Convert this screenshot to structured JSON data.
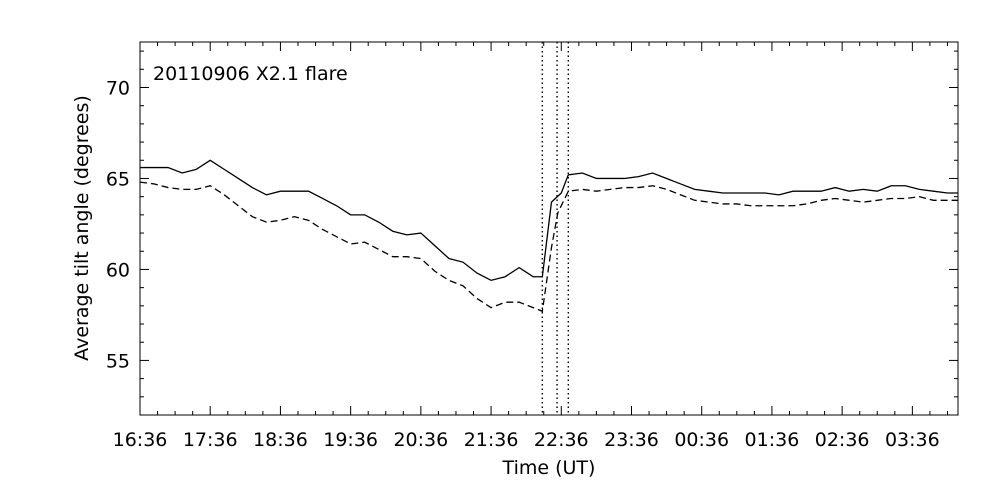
{
  "chart_data": {
    "type": "line",
    "title": "",
    "annotation": "20110906 X2.1 flare",
    "xlabel": "Time (UT)",
    "ylabel": "Average tilt angle (degrees)",
    "xlim": [
      0,
      11.65
    ],
    "ylim": [
      52,
      72.5
    ],
    "x_tick_values": [
      0,
      1,
      2,
      3,
      4,
      5,
      6,
      7,
      8,
      9,
      10,
      11
    ],
    "x_tick_labels": [
      "16:36",
      "17:36",
      "18:36",
      "19:36",
      "20:36",
      "21:36",
      "22:36",
      "23:36",
      "00:36",
      "01:36",
      "02:36",
      "03:36"
    ],
    "y_ticks": [
      55,
      60,
      65,
      70
    ],
    "grid": false,
    "vertical_markers": [
      5.73,
      5.94,
      6.1
    ],
    "series": [
      {
        "style": "solid",
        "points": [
          [
            0,
            65.6
          ],
          [
            0.2,
            65.6
          ],
          [
            0.4,
            65.6
          ],
          [
            0.6,
            65.3
          ],
          [
            0.8,
            65.5
          ],
          [
            1.0,
            66.0
          ],
          [
            1.2,
            65.5
          ],
          [
            1.4,
            65.0
          ],
          [
            1.6,
            64.5
          ],
          [
            1.8,
            64.1
          ],
          [
            2.0,
            64.3
          ],
          [
            2.2,
            64.3
          ],
          [
            2.4,
            64.3
          ],
          [
            2.6,
            63.9
          ],
          [
            2.8,
            63.5
          ],
          [
            3.0,
            63.0
          ],
          [
            3.2,
            63.0
          ],
          [
            3.4,
            62.6
          ],
          [
            3.6,
            62.1
          ],
          [
            3.8,
            61.9
          ],
          [
            4.0,
            62.0
          ],
          [
            4.2,
            61.3
          ],
          [
            4.4,
            60.6
          ],
          [
            4.6,
            60.4
          ],
          [
            4.8,
            59.8
          ],
          [
            5.0,
            59.4
          ],
          [
            5.2,
            59.6
          ],
          [
            5.4,
            60.1
          ],
          [
            5.6,
            59.6
          ],
          [
            5.73,
            59.6
          ],
          [
            5.86,
            63.7
          ],
          [
            6.0,
            64.2
          ],
          [
            6.1,
            65.2
          ],
          [
            6.3,
            65.3
          ],
          [
            6.5,
            65.0
          ],
          [
            6.7,
            65.0
          ],
          [
            6.9,
            65.0
          ],
          [
            7.1,
            65.1
          ],
          [
            7.3,
            65.3
          ],
          [
            7.5,
            65.0
          ],
          [
            7.7,
            64.7
          ],
          [
            7.9,
            64.4
          ],
          [
            8.1,
            64.3
          ],
          [
            8.3,
            64.2
          ],
          [
            8.5,
            64.2
          ],
          [
            8.7,
            64.2
          ],
          [
            8.9,
            64.2
          ],
          [
            9.1,
            64.1
          ],
          [
            9.3,
            64.3
          ],
          [
            9.5,
            64.3
          ],
          [
            9.7,
            64.3
          ],
          [
            9.9,
            64.5
          ],
          [
            10.1,
            64.3
          ],
          [
            10.3,
            64.4
          ],
          [
            10.5,
            64.3
          ],
          [
            10.7,
            64.6
          ],
          [
            10.9,
            64.6
          ],
          [
            11.1,
            64.4
          ],
          [
            11.3,
            64.3
          ],
          [
            11.5,
            64.2
          ],
          [
            11.65,
            64.2
          ]
        ]
      },
      {
        "style": "dashed",
        "points": [
          [
            0,
            64.8
          ],
          [
            0.2,
            64.7
          ],
          [
            0.4,
            64.5
          ],
          [
            0.6,
            64.4
          ],
          [
            0.8,
            64.4
          ],
          [
            1.0,
            64.6
          ],
          [
            1.2,
            64.1
          ],
          [
            1.4,
            63.5
          ],
          [
            1.6,
            62.9
          ],
          [
            1.8,
            62.6
          ],
          [
            2.0,
            62.7
          ],
          [
            2.2,
            62.9
          ],
          [
            2.4,
            62.7
          ],
          [
            2.6,
            62.2
          ],
          [
            2.8,
            61.8
          ],
          [
            3.0,
            61.4
          ],
          [
            3.2,
            61.5
          ],
          [
            3.4,
            61.1
          ],
          [
            3.6,
            60.7
          ],
          [
            3.8,
            60.7
          ],
          [
            4.0,
            60.6
          ],
          [
            4.2,
            59.9
          ],
          [
            4.4,
            59.4
          ],
          [
            4.6,
            59.1
          ],
          [
            4.8,
            58.4
          ],
          [
            5.0,
            57.9
          ],
          [
            5.2,
            58.2
          ],
          [
            5.4,
            58.2
          ],
          [
            5.6,
            57.9
          ],
          [
            5.73,
            57.7
          ],
          [
            5.86,
            61.2
          ],
          [
            5.95,
            63.1
          ],
          [
            6.1,
            64.3
          ],
          [
            6.3,
            64.4
          ],
          [
            6.5,
            64.3
          ],
          [
            6.7,
            64.4
          ],
          [
            6.9,
            64.5
          ],
          [
            7.1,
            64.5
          ],
          [
            7.3,
            64.6
          ],
          [
            7.5,
            64.4
          ],
          [
            7.7,
            64.1
          ],
          [
            7.9,
            63.8
          ],
          [
            8.1,
            63.7
          ],
          [
            8.3,
            63.6
          ],
          [
            8.5,
            63.6
          ],
          [
            8.7,
            63.5
          ],
          [
            8.9,
            63.5
          ],
          [
            9.1,
            63.5
          ],
          [
            9.3,
            63.5
          ],
          [
            9.5,
            63.6
          ],
          [
            9.7,
            63.8
          ],
          [
            9.9,
            63.9
          ],
          [
            10.1,
            63.8
          ],
          [
            10.3,
            63.7
          ],
          [
            10.5,
            63.8
          ],
          [
            10.7,
            63.9
          ],
          [
            10.9,
            63.9
          ],
          [
            11.1,
            64.0
          ],
          [
            11.3,
            63.8
          ],
          [
            11.5,
            63.8
          ],
          [
            11.65,
            63.8
          ]
        ]
      }
    ]
  }
}
